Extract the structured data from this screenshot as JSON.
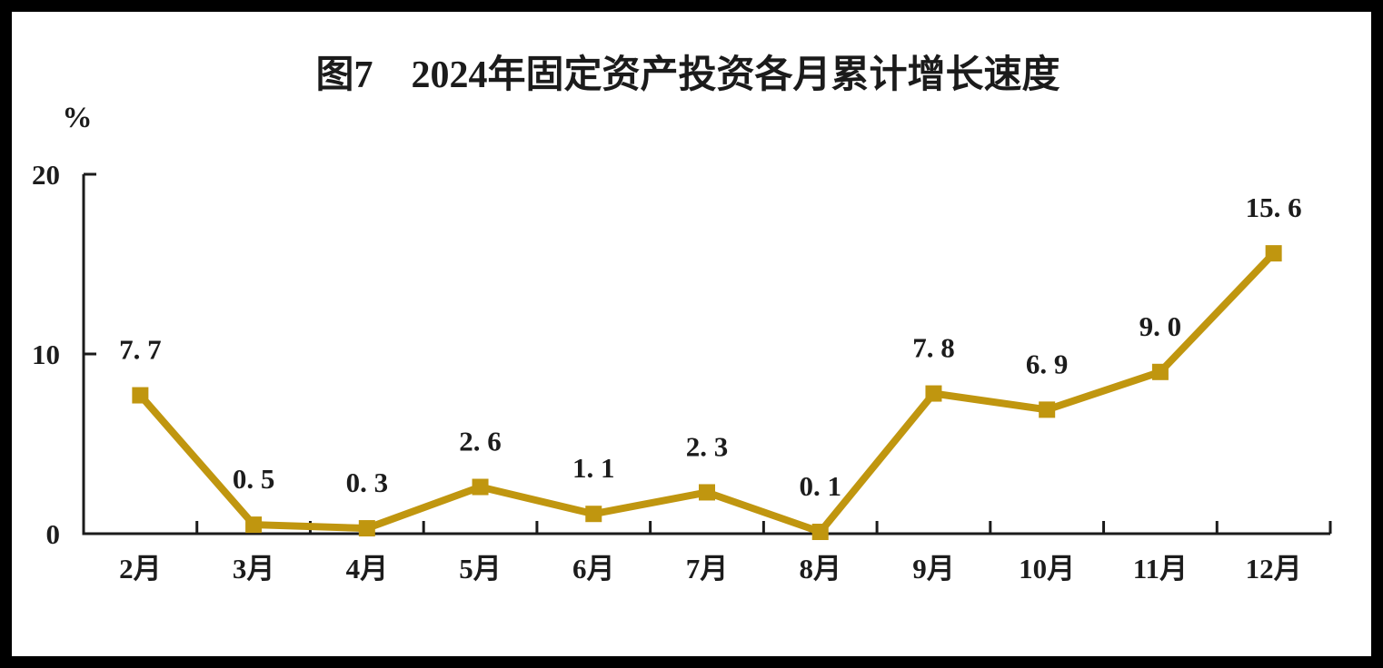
{
  "window": {
    "background_color": "#ffffff",
    "frame_color": "#000000"
  },
  "chart_data": {
    "type": "line",
    "title": "图7　2024年固定资产投资各月累计增长速度",
    "ylabel": "%",
    "categories": [
      "2月",
      "3月",
      "4月",
      "5月",
      "6月",
      "7月",
      "8月",
      "9月",
      "10月",
      "11月",
      "12月"
    ],
    "values": [
      7.7,
      0.5,
      0.3,
      2.6,
      1.1,
      2.3,
      0.1,
      7.8,
      6.9,
      9.0,
      15.6
    ],
    "point_labels": [
      "7. 7",
      "0. 5",
      "0. 3",
      "2. 6",
      "1. 1",
      "2. 3",
      "0. 1",
      "7. 8",
      "6. 9",
      "9. 0",
      "15. 6"
    ],
    "ylim": [
      0,
      20
    ],
    "yticks": [
      0,
      10,
      20
    ],
    "grid": false,
    "legend": "none",
    "colors": {
      "line": "#C0960F",
      "marker": "#C0960F",
      "text": "#1c1c1c",
      "axis": "#1b1b1b"
    }
  }
}
